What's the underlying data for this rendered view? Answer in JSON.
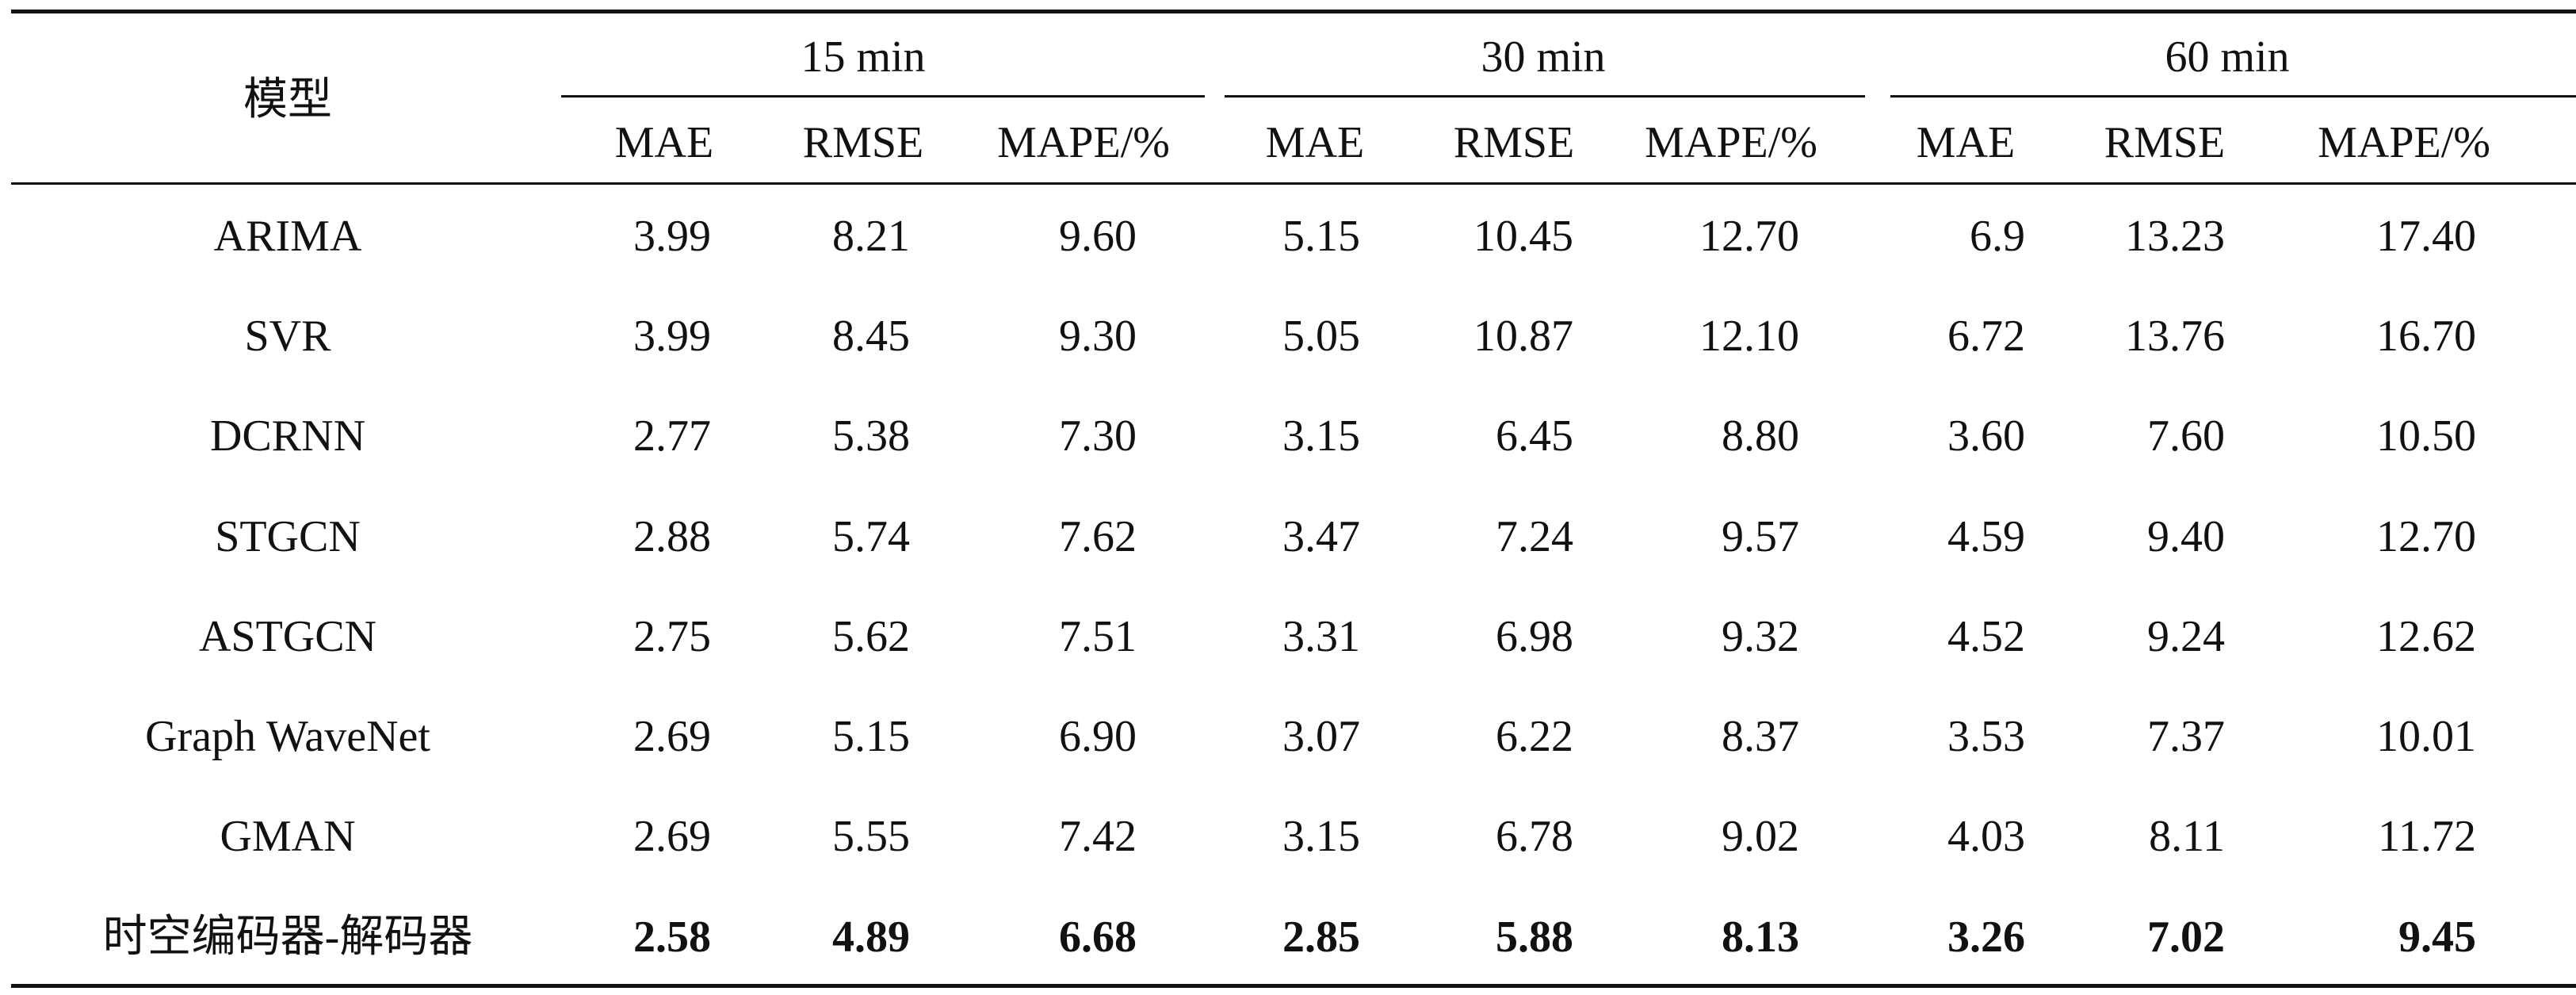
{
  "table": {
    "model_header": "模型",
    "groups": [
      "15 min",
      "30 min",
      "60 min"
    ],
    "metrics": [
      "MAE",
      "RMSE",
      "MAPE/%",
      "MAE",
      "RMSE",
      "MAPE/%",
      "MAE",
      "RMSE",
      "MAPE/%"
    ],
    "rows": [
      {
        "model": "ARIMA",
        "values": [
          "3.99",
          "8.21",
          "9.60",
          "5.15",
          "10.45",
          "12.70",
          "6.9",
          "13.23",
          "17.40"
        ],
        "bold": false
      },
      {
        "model": "SVR",
        "values": [
          "3.99",
          "8.45",
          "9.30",
          "5.05",
          "10.87",
          "12.10",
          "6.72",
          "13.76",
          "16.70"
        ],
        "bold": false
      },
      {
        "model": "DCRNN",
        "values": [
          "2.77",
          "5.38",
          "7.30",
          "3.15",
          "6.45",
          "8.80",
          "3.60",
          "7.60",
          "10.50"
        ],
        "bold": false
      },
      {
        "model": "STGCN",
        "values": [
          "2.88",
          "5.74",
          "7.62",
          "3.47",
          "7.24",
          "9.57",
          "4.59",
          "9.40",
          "12.70"
        ],
        "bold": false
      },
      {
        "model": "ASTGCN",
        "values": [
          "2.75",
          "5.62",
          "7.51",
          "3.31",
          "6.98",
          "9.32",
          "4.52",
          "9.24",
          "12.62"
        ],
        "bold": false
      },
      {
        "model": "Graph WaveNet",
        "values": [
          "2.69",
          "5.15",
          "6.90",
          "3.07",
          "6.22",
          "8.37",
          "3.53",
          "7.37",
          "10.01"
        ],
        "bold": false
      },
      {
        "model": "GMAN",
        "values": [
          "2.69",
          "5.55",
          "7.42",
          "3.15",
          "6.78",
          "9.02",
          "4.03",
          "8.11",
          "11.72"
        ],
        "bold": false
      },
      {
        "model": "时空编码器-解码器",
        "values": [
          "2.58",
          "4.89",
          "6.68",
          "2.85",
          "5.88",
          "8.13",
          "3.26",
          "7.02",
          "9.45"
        ],
        "bold": true
      }
    ]
  }
}
